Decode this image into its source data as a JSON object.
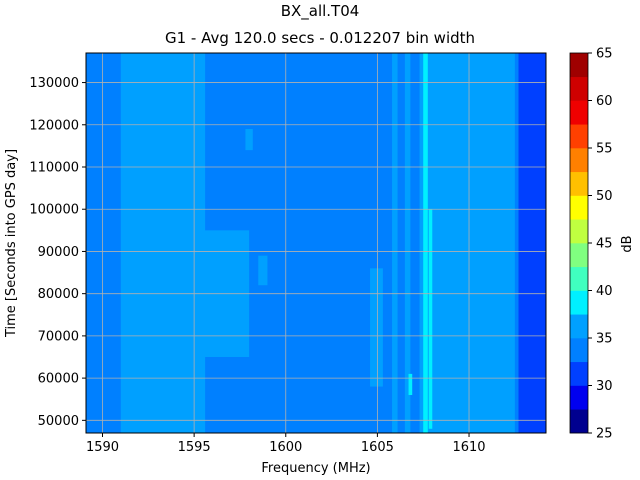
{
  "chart_data": {
    "type": "heatmap",
    "title": "BX_all.T04",
    "subtitle": "G1 - Avg 120.0 secs - 0.012207 bin width",
    "xlabel": "Frequency (MHz)",
    "ylabel": "Time [Seconds into GPS day]",
    "colorbar_label": "dB",
    "xlim": [
      1589.1,
      1614.2
    ],
    "ylim": [
      47000,
      137000
    ],
    "x_ticks": [
      1590,
      1595,
      1600,
      1605,
      1610
    ],
    "x_tick_labels": [
      "1590",
      "1595",
      "1600",
      "1605",
      "1610"
    ],
    "y_ticks": [
      50000,
      60000,
      70000,
      80000,
      90000,
      100000,
      110000,
      120000,
      130000
    ],
    "y_tick_labels": [
      "50000",
      "60000",
      "70000",
      "80000",
      "90000",
      "100000",
      "110000",
      "120000",
      "130000"
    ],
    "colorbar_levels": [
      25,
      27.5,
      30,
      32.5,
      35,
      37.5,
      40,
      42.5,
      45,
      47.5,
      50,
      52.5,
      55,
      57.5,
      60,
      62.5,
      65
    ],
    "colorbar_ticks": [
      25,
      30,
      35,
      40,
      45,
      50,
      55,
      60,
      65
    ],
    "colorbar_tick_labels": [
      "25",
      "30",
      "35",
      "40",
      "45",
      "50",
      "55",
      "60",
      "65"
    ],
    "colors": [
      "#00008f",
      "#0000ef",
      "#0040ff",
      "#0080ff",
      "#00a0ff",
      "#00f0ff",
      "#40ffbf",
      "#80ff80",
      "#c0ff40",
      "#ffff00",
      "#ffc000",
      "#ff8000",
      "#ff4000",
      "#ef0000",
      "#cf0000",
      "#9f0000"
    ],
    "grid": true,
    "bands": [
      {
        "x": [
          1589.1,
          1589.7
        ],
        "y": [
          47000,
          137000
        ],
        "level": 32.5
      },
      {
        "x": [
          1589.7,
          1612.7
        ],
        "y": [
          47000,
          137000
        ],
        "level": 32.5
      },
      {
        "x": [
          1591.0,
          1595.6
        ],
        "y": [
          47000,
          137000
        ],
        "level": 35
      },
      {
        "x": [
          1592.1,
          1598.0
        ],
        "y": [
          65000,
          95000
        ],
        "level": 35
      },
      {
        "x": [
          1591.3,
          1597.5
        ],
        "y": [
          66000,
          68000
        ],
        "level": 35
      },
      {
        "x": [
          1597.8,
          1598.2
        ],
        "y": [
          114000,
          119000
        ],
        "level": 35
      },
      {
        "x": [
          1598.5,
          1599.0
        ],
        "y": [
          82000,
          89000
        ],
        "level": 35
      },
      {
        "x": [
          1604.6,
          1605.3
        ],
        "y": [
          58000,
          86000
        ],
        "level": 35
      },
      {
        "x": [
          1605.8,
          1606.1
        ],
        "y": [
          47000,
          137000
        ],
        "level": 35
      },
      {
        "x": [
          1606.5,
          1606.8
        ],
        "y": [
          47000,
          137000
        ],
        "level": 35
      },
      {
        "x": [
          1606.7,
          1606.9
        ],
        "y": [
          56000,
          61000
        ],
        "level": 37.5
      },
      {
        "x": [
          1607.3,
          1608.1
        ],
        "y": [
          47000,
          137000
        ],
        "level": 35
      },
      {
        "x": [
          1607.5,
          1607.75
        ],
        "y": [
          47000,
          137000
        ],
        "level": 37.5
      },
      {
        "x": [
          1607.8,
          1608.0
        ],
        "y": [
          48000,
          100000
        ],
        "level": 37.5
      },
      {
        "x": [
          1608.0,
          1612.5
        ],
        "y": [
          47000,
          137000
        ],
        "level": 35
      }
    ]
  }
}
